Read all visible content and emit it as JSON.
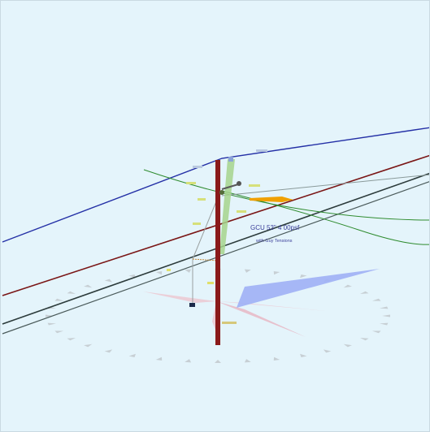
{
  "viewport": {
    "background": "#e4f4fb"
  },
  "labels": {
    "pole_text": "GCU 53\" 4 00psf",
    "pole_subtext": "with Guy Tensions"
  },
  "colors": {
    "pole": "#8a1a1a",
    "pole_highlight": "#a6d48c",
    "primary_wire": "#2430a6",
    "neutral_wire": "#7a1616",
    "comm_wire": "#2c3b3b",
    "green_wire": "#2e8b2e",
    "compass_pink": "#e7b7c4",
    "compass_blue": "#9fb0f5",
    "compass_ticks": "#c7cfd4",
    "arrow": "#f0a000"
  },
  "icons": {
    "compass": "compass-rose-icon",
    "arrow": "direction-arrow-icon",
    "anchor": "anchor-icon",
    "crossarm": "crossarm-icon"
  }
}
